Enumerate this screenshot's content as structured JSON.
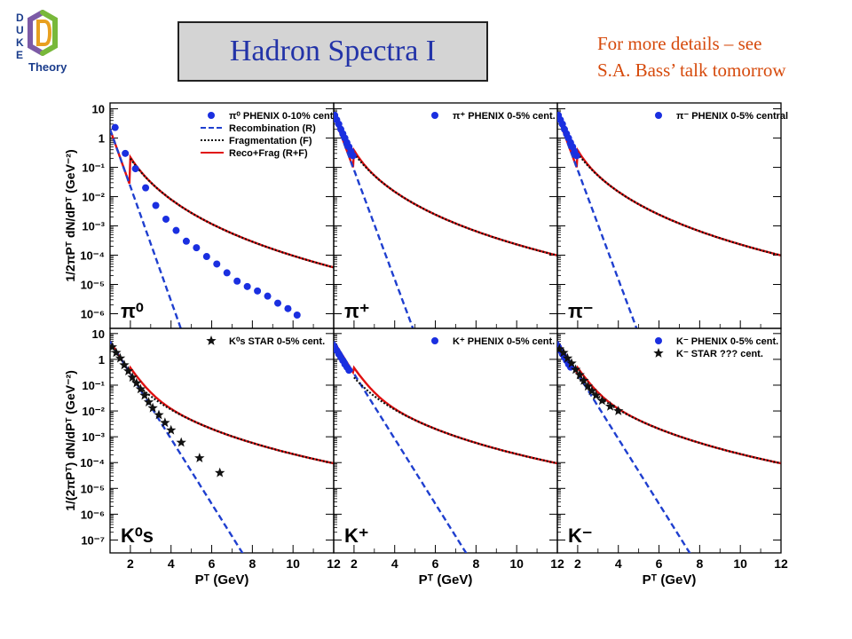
{
  "header": {
    "title": "Hadron Spectra I",
    "note_line1": "For more details – see",
    "note_line2": "S.A. Bass’ talk tomorrow",
    "logo_letters": [
      "D",
      "U",
      "K",
      "E"
    ],
    "logo_word": "Theory"
  },
  "colors": {
    "recombination": "#1f3fcf",
    "fragmentation": "#111111",
    "total": "#e01010",
    "phenix_marker": "#1a2fe0",
    "star_marker": "#111111",
    "title_text": "#2233a8",
    "note_text": "#d64a0c"
  },
  "chart_data": [
    {
      "type": "scatter",
      "particle": "π⁰",
      "xlim": [
        1,
        12
      ],
      "ylim_exp": [
        -6.5,
        1.2
      ],
      "yscale": "log",
      "xticks": [],
      "yticks": [
        "10",
        "1",
        "10⁻¹",
        "10⁻²",
        "10⁻³",
        "10⁻⁴",
        "10⁻⁵",
        "10⁻⁶"
      ],
      "ylabel": "1/2πPᵀ dN/dPᵀ (GeV⁻²)",
      "legend": [
        {
          "label": "π⁰ PHENIX 0-10% cent.",
          "style": "dot"
        },
        {
          "label": "Recombination (R)",
          "style": "dash"
        },
        {
          "label": "Fragmentation (F)",
          "style": "dot-line"
        },
        {
          "label": "Reco+Frag (R+F)",
          "style": "solid"
        }
      ],
      "data_style": "dot",
      "data": [
        [
          1.25,
          2.3
        ],
        [
          1.75,
          0.3
        ],
        [
          2.25,
          0.09
        ],
        [
          2.75,
          0.02
        ],
        [
          3.25,
          0.005
        ],
        [
          3.75,
          0.0017
        ],
        [
          4.25,
          0.0007
        ],
        [
          4.75,
          0.0003
        ],
        [
          5.25,
          0.00018
        ],
        [
          5.75,
          9e-05
        ],
        [
          6.25,
          5e-05
        ],
        [
          6.75,
          2.5e-05
        ],
        [
          7.25,
          1.3e-05
        ],
        [
          7.75,
          8.5e-06
        ],
        [
          8.25,
          6e-06
        ],
        [
          8.75,
          4e-06
        ],
        [
          9.25,
          2.3e-06
        ],
        [
          9.75,
          1.5e-06
        ],
        [
          10.2,
          9e-07
        ]
      ],
      "reco": {
        "A": 2,
        "b": 4.5
      },
      "frag": {
        "A": 0.2,
        "n": 4.5
      },
      "frag_start": 2
    },
    {
      "type": "scatter",
      "particle": "π⁺",
      "xlim": [
        1,
        12
      ],
      "ylim_exp": [
        -6.5,
        1.2
      ],
      "yscale": "log",
      "legend": [
        {
          "label": "π⁺ PHENIX 0-5% cent.",
          "style": "dot"
        }
      ],
      "data_style": "dot",
      "data": [
        [
          1.05,
          6
        ],
        [
          1.15,
          4.2
        ],
        [
          1.25,
          3
        ],
        [
          1.35,
          2
        ],
        [
          1.45,
          1.4
        ],
        [
          1.55,
          1
        ],
        [
          1.65,
          0.7
        ],
        [
          1.75,
          0.5
        ],
        [
          1.85,
          0.35
        ],
        [
          1.95,
          0.25
        ]
      ],
      "reco": {
        "A": 6,
        "b": 4.3
      },
      "frag": {
        "A": 0.3,
        "n": 4.2
      },
      "frag_start": 2
    },
    {
      "type": "scatter",
      "particle": "π⁻",
      "xlim": [
        1,
        12
      ],
      "ylim_exp": [
        -6.5,
        1.2
      ],
      "yscale": "log",
      "legend": [
        {
          "label": "π⁻ PHENIX 0-5% central",
          "style": "dot"
        }
      ],
      "data_style": "dot",
      "data": [
        [
          1.05,
          6
        ],
        [
          1.15,
          4.2
        ],
        [
          1.25,
          3
        ],
        [
          1.35,
          2
        ],
        [
          1.45,
          1.4
        ],
        [
          1.55,
          1
        ],
        [
          1.65,
          0.7
        ],
        [
          1.75,
          0.5
        ],
        [
          1.85,
          0.35
        ],
        [
          1.95,
          0.25
        ]
      ],
      "reco": {
        "A": 6,
        "b": 4.3
      },
      "frag": {
        "A": 0.3,
        "n": 4.2
      },
      "frag_start": 2
    },
    {
      "type": "scatter",
      "particle": "K⁰s",
      "xlim": [
        1,
        12
      ],
      "ylim_exp": [
        -7.5,
        1.2
      ],
      "yscale": "log",
      "xticks": [
        "2",
        "4",
        "6",
        "8",
        "10",
        "12"
      ],
      "yticks": [
        "10",
        "1",
        "10⁻¹",
        "10⁻²",
        "10⁻³",
        "10⁻⁴",
        "10⁻⁵",
        "10⁻⁶",
        "10⁻⁷"
      ],
      "ylabel": "1/(2πPᵀ) dN/dPᵀ (GeV⁻²)",
      "xlabel": "Pᵀ (GeV)",
      "legend": [
        {
          "label": "K⁰s STAR 0-5% cent.",
          "style": "star"
        }
      ],
      "data_style": "star",
      "data": [
        [
          1.1,
          3
        ],
        [
          1.3,
          1.8
        ],
        [
          1.5,
          1.1
        ],
        [
          1.7,
          0.6
        ],
        [
          1.9,
          0.35
        ],
        [
          2.1,
          0.2
        ],
        [
          2.3,
          0.12
        ],
        [
          2.5,
          0.07
        ],
        [
          2.7,
          0.04
        ],
        [
          2.9,
          0.022
        ],
        [
          3.1,
          0.013
        ],
        [
          3.4,
          0.007
        ],
        [
          3.7,
          0.0035
        ],
        [
          4.0,
          0.0018
        ],
        [
          4.5,
          0.0006
        ],
        [
          5.4,
          0.00015
        ],
        [
          6.4,
          4e-05
        ]
      ],
      "reco": {
        "A": 5,
        "b": 2.9
      },
      "frag": {
        "A": 0.2,
        "n": 4.0
      },
      "frag_start": 2
    },
    {
      "type": "scatter",
      "particle": "K⁺",
      "xlim": [
        1,
        12
      ],
      "ylim_exp": [
        -7.5,
        1.2
      ],
      "yscale": "log",
      "xticks": [
        "2",
        "4",
        "6",
        "8",
        "10",
        "12"
      ],
      "xlabel": "Pᵀ (GeV)",
      "legend": [
        {
          "label": "K⁺ PHENIX 0-5% cent.",
          "style": "dot"
        }
      ],
      "data_style": "dot",
      "data": [
        [
          1.05,
          3
        ],
        [
          1.15,
          2.2
        ],
        [
          1.25,
          1.6
        ],
        [
          1.35,
          1.2
        ],
        [
          1.45,
          0.9
        ],
        [
          1.55,
          0.65
        ],
        [
          1.65,
          0.5
        ],
        [
          1.75,
          0.38
        ]
      ],
      "reco": {
        "A": 5,
        "b": 2.9
      },
      "frag": {
        "A": 0.2,
        "n": 4.0
      },
      "frag_start": 2
    },
    {
      "type": "scatter",
      "particle": "K⁻",
      "xlim": [
        1,
        12
      ],
      "ylim_exp": [
        -7.5,
        1.2
      ],
      "yscale": "log",
      "xticks": [
        "2",
        "4",
        "6",
        "8",
        "10",
        "12"
      ],
      "xlabel": "Pᵀ (GeV)",
      "legend": [
        {
          "label": "K⁻ PHENIX 0-5% cent.",
          "style": "dot"
        },
        {
          "label": "K⁻ STAR ??? cent.",
          "style": "star"
        }
      ],
      "data_style": "dot",
      "data": [
        [
          1.05,
          3
        ],
        [
          1.15,
          2.2
        ],
        [
          1.25,
          1.6
        ],
        [
          1.35,
          1.2
        ],
        [
          1.45,
          0.9
        ],
        [
          1.55,
          0.65
        ],
        [
          1.65,
          0.5
        ]
      ],
      "data2_style": "star",
      "data2": [
        [
          1.1,
          2.5
        ],
        [
          1.3,
          1.8
        ],
        [
          1.5,
          1.1
        ],
        [
          1.7,
          0.7
        ],
        [
          1.9,
          0.4
        ],
        [
          2.1,
          0.25
        ],
        [
          2.3,
          0.15
        ],
        [
          2.5,
          0.09
        ],
        [
          2.7,
          0.06
        ],
        [
          2.9,
          0.04
        ],
        [
          3.2,
          0.025
        ],
        [
          3.6,
          0.015
        ],
        [
          4.0,
          0.01
        ]
      ],
      "reco": {
        "A": 5,
        "b": 2.9
      },
      "frag": {
        "A": 0.2,
        "n": 4.0
      },
      "frag_start": 2
    }
  ]
}
